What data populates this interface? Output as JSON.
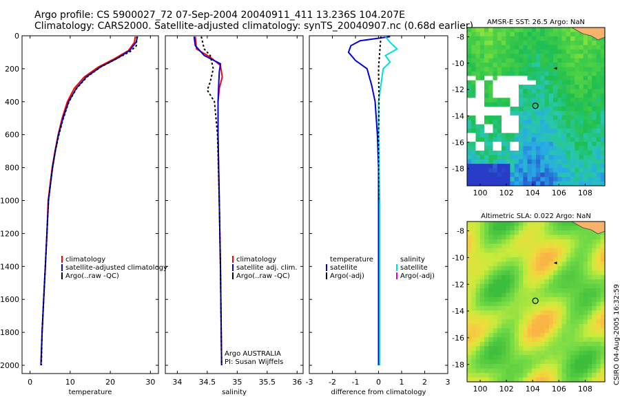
{
  "header": {
    "line1": "Argo profile: CS 5900027_72 07-Sep-2004 20040911_411 13.236S 104.207E",
    "line2": "Climatology: CARS2000. Satellite-adjusted climatology: synTS_20040907.nc (0.68d earlier)"
  },
  "side_label": "CSIRO 04-Aug-2005 16:32:59",
  "colors": {
    "climatology": "#ff0000",
    "satellite": "#0000dd",
    "argo": "#000000",
    "sal_sat": "#00dddd",
    "sal_adj": "#dd00dd",
    "land": "#f7b26b"
  },
  "chart_data": [
    {
      "type": "line",
      "id": "temperature",
      "xlabel": "temperature",
      "xlim": [
        -2,
        32
      ],
      "ylim": [
        0,
        2050
      ],
      "xticks": [
        0,
        10,
        20,
        30
      ],
      "yticks": [
        0,
        200,
        400,
        600,
        800,
        1000,
        1200,
        1400,
        1600,
        1800,
        2000
      ],
      "legend": [
        "climatology",
        "satellite-adjusted climatology",
        "Argo(..raw -QC)"
      ],
      "series": [
        {
          "name": "climatology",
          "color": "#ff0000",
          "points": [
            [
              26.2,
              5
            ],
            [
              26.0,
              40
            ],
            [
              24.5,
              90
            ],
            [
              21,
              140
            ],
            [
              17,
              190
            ],
            [
              13.5,
              250
            ],
            [
              11,
              320
            ],
            [
              9.3,
              400
            ],
            [
              8,
              500
            ],
            [
              7,
              600
            ],
            [
              6.2,
              700
            ],
            [
              5.5,
              800
            ],
            [
              5,
              900
            ],
            [
              4.5,
              1000
            ],
            [
              4.2,
              1200
            ],
            [
              3.8,
              1400
            ],
            [
              3.4,
              1600
            ],
            [
              3.0,
              1800
            ],
            [
              2.7,
              2000
            ]
          ]
        },
        {
          "name": "satellite-adjusted climatology",
          "color": "#0000dd",
          "points": [
            [
              26.8,
              5
            ],
            [
              26.4,
              40
            ],
            [
              24.8,
              90
            ],
            [
              21.5,
              140
            ],
            [
              17.5,
              190
            ],
            [
              14,
              250
            ],
            [
              11.5,
              320
            ],
            [
              9.6,
              400
            ],
            [
              8.2,
              500
            ],
            [
              7.1,
              600
            ],
            [
              6.3,
              700
            ],
            [
              5.6,
              800
            ],
            [
              5.1,
              900
            ],
            [
              4.6,
              1000
            ],
            [
              4.2,
              1200
            ],
            [
              3.8,
              1400
            ],
            [
              3.4,
              1600
            ],
            [
              3.0,
              1800
            ],
            [
              2.7,
              2000
            ]
          ]
        },
        {
          "name": "Argo(..raw -QC)",
          "color": "#000000",
          "points": [
            [
              26.6,
              5
            ],
            [
              26.5,
              60
            ],
            [
              25,
              95
            ],
            [
              21.5,
              140
            ],
            [
              17.6,
              190
            ],
            [
              14.2,
              250
            ],
            [
              11.6,
              320
            ],
            [
              9.7,
              400
            ],
            [
              8.3,
              500
            ],
            [
              7.2,
              600
            ],
            [
              6.3,
              700
            ],
            [
              5.6,
              800
            ],
            [
              5.1,
              900
            ],
            [
              4.6,
              1000
            ],
            [
              4.2,
              1200
            ],
            [
              3.8,
              1400
            ],
            [
              3.4,
              1600
            ],
            [
              3.0,
              1800
            ],
            [
              2.8,
              2000
            ]
          ]
        }
      ]
    },
    {
      "type": "line",
      "id": "salinity",
      "xlabel": "salinity",
      "xlim": [
        33.8,
        36.1
      ],
      "ylim": [
        0,
        2050
      ],
      "xticks": [
        34,
        34.5,
        35,
        35.5,
        36
      ],
      "legend": [
        "climatology",
        "satellite adj. clim.",
        "Argo(..raw -QC)"
      ],
      "annotation": [
        "Argo AUSTRALIA",
        "PI: Susan Wijffels"
      ],
      "series": [
        {
          "name": "climatology",
          "color": "#ff0000",
          "points": [
            [
              34.3,
              5
            ],
            [
              34.32,
              80
            ],
            [
              34.55,
              130
            ],
            [
              34.72,
              180
            ],
            [
              34.75,
              250
            ],
            [
              34.7,
              320
            ],
            [
              34.68,
              400
            ],
            [
              34.68,
              600
            ],
            [
              34.7,
              1000
            ],
            [
              34.72,
              1400
            ],
            [
              34.74,
              2000
            ]
          ]
        },
        {
          "name": "satellite adj. clim.",
          "color": "#0000dd",
          "points": [
            [
              34.28,
              5
            ],
            [
              34.3,
              60
            ],
            [
              34.45,
              120
            ],
            [
              34.72,
              170
            ],
            [
              34.7,
              220
            ],
            [
              34.69,
              300
            ],
            [
              34.68,
              400
            ],
            [
              34.68,
              600
            ],
            [
              34.7,
              1000
            ],
            [
              34.72,
              1400
            ],
            [
              34.74,
              2000
            ]
          ]
        },
        {
          "name": "Argo(..raw -QC)",
          "color": "#000000",
          "points": [
            [
              34.4,
              5
            ],
            [
              34.45,
              80
            ],
            [
              34.55,
              120
            ],
            [
              34.6,
              200
            ],
            [
              34.55,
              280
            ],
            [
              34.5,
              330
            ],
            [
              34.62,
              400
            ],
            [
              34.67,
              600
            ],
            [
              34.7,
              1000
            ],
            [
              34.72,
              1400
            ],
            [
              34.74,
              2000
            ]
          ]
        }
      ]
    },
    {
      "type": "line",
      "id": "difference",
      "xlabel": "difference from climatology",
      "xlim": [
        -3,
        3
      ],
      "ylim": [
        0,
        2050
      ],
      "xticks": [
        -3,
        -2,
        -1,
        0,
        1,
        2,
        3
      ],
      "legend_left": [
        "temperature",
        "satellite",
        "Argo(-adj)"
      ],
      "legend_right": [
        "salinity",
        "satellite",
        "Argo(-adj)"
      ],
      "series": [
        {
          "name": "temperature satellite",
          "color": "#0000dd",
          "points": [
            [
              0.5,
              5
            ],
            [
              -0.8,
              30
            ],
            [
              -1.2,
              60
            ],
            [
              -1.3,
              100
            ],
            [
              -1.0,
              150
            ],
            [
              -0.5,
              200
            ],
            [
              -0.3,
              300
            ],
            [
              -0.15,
              400
            ],
            [
              -0.05,
              600
            ],
            [
              0,
              800
            ],
            [
              0,
              1000
            ],
            [
              0,
              2000
            ]
          ]
        },
        {
          "name": "salinity satellite",
          "color": "#00dddd",
          "points": [
            [
              0.3,
              5
            ],
            [
              0.5,
              40
            ],
            [
              0.8,
              80
            ],
            [
              0.3,
              120
            ],
            [
              0.5,
              160
            ],
            [
              0.2,
              200
            ],
            [
              0.1,
              300
            ],
            [
              0,
              400
            ],
            [
              0,
              600
            ],
            [
              0.05,
              1000
            ],
            [
              0.05,
              2000
            ]
          ]
        },
        {
          "name": "temperature Argo(-adj)",
          "color": "#000000",
          "points": [
            [
              0.1,
              5
            ],
            [
              0.05,
              100
            ],
            [
              0,
              200
            ],
            [
              0.02,
              400
            ],
            [
              0,
              600
            ],
            [
              0,
              1000
            ]
          ]
        }
      ]
    }
  ],
  "maps": [
    {
      "title": "AMSR-E SST: 26.5 Argo: NaN",
      "xticks": [
        "100",
        "102",
        "104",
        "106",
        "108"
      ],
      "yticks": [
        "-8",
        "-10",
        "-12",
        "-14",
        "-16",
        "-18"
      ]
    },
    {
      "title": "Altimetric SLA: 0.022 Argo: NaN",
      "xticks": [
        "100",
        "102",
        "104",
        "106",
        "108"
      ],
      "yticks": [
        "-8",
        "-10",
        "-12",
        "-14",
        "-16",
        "-18"
      ]
    }
  ]
}
